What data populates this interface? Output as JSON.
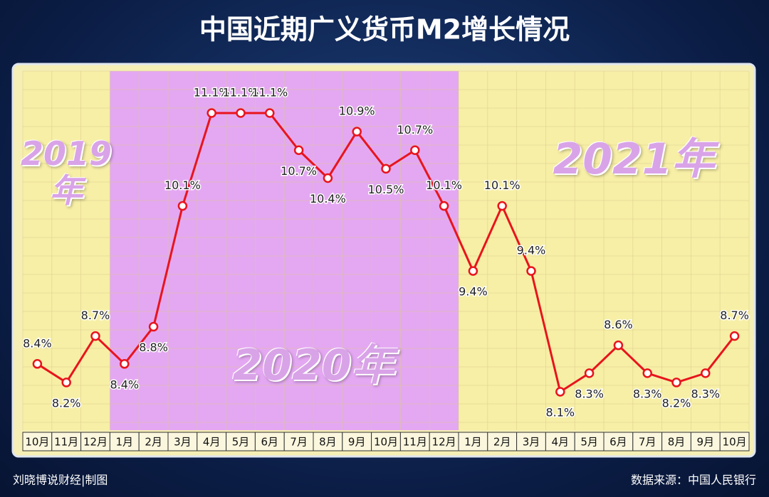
{
  "chart_data": {
    "type": "line",
    "title": "中国近期广义货币M2增长情况",
    "categories": [
      "10月",
      "11月",
      "12月",
      "1月",
      "2月",
      "3月",
      "4月",
      "5月",
      "6月",
      "7月",
      "8月",
      "9月",
      "10月",
      "11月",
      "12月",
      "1月",
      "2月",
      "3月",
      "4月",
      "5月",
      "6月",
      "7月",
      "8月",
      "9月",
      "10月"
    ],
    "series": [
      {
        "name": "M2",
        "color": "#e8141c",
        "values": [
          8.4,
          8.2,
          8.7,
          8.4,
          8.8,
          10.1,
          11.1,
          11.1,
          11.1,
          10.7,
          10.4,
          10.9,
          10.5,
          10.7,
          10.1,
          9.4,
          10.1,
          9.4,
          8.1,
          8.3,
          8.6,
          8.3,
          8.2,
          8.3,
          8.7
        ],
        "value_labels": [
          "8.4%",
          "8.2%",
          "8.7%",
          "8.4%",
          "8.8%",
          "10.1%",
          "11.1%",
          "11.1%",
          "11.1%",
          "10.7%",
          "10.4%",
          "10.9%",
          "10.5%",
          "10.7%",
          "10.1%",
          "9.4%",
          "10.1%",
          "9.4%",
          "8.1%",
          "8.3%",
          "8.6%",
          "8.3%",
          "8.2%",
          "8.3%",
          "8.7%"
        ]
      }
    ],
    "periods": [
      "2019年",
      "2020年",
      "2021年"
    ],
    "source": "数据来源：中国人民银行",
    "credit": "刘晓博说财经|制图"
  }
}
